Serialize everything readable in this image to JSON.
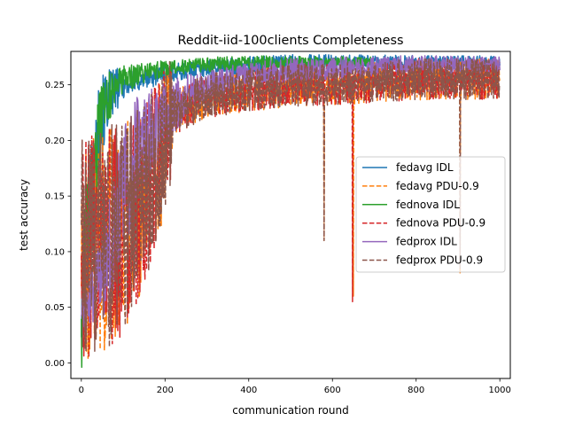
{
  "chart_data": {
    "type": "line",
    "title": "Reddit-iid-100clients Completeness",
    "xlabel": "communication round",
    "ylabel": "test accuracy",
    "xlim": [
      -25,
      1025
    ],
    "ylim": [
      -0.014,
      0.28
    ],
    "grid": false,
    "legend_position": "center-right",
    "x_ticks": [
      0,
      200,
      400,
      600,
      800,
      1000
    ],
    "x_tick_labels": [
      "0",
      "200",
      "400",
      "600",
      "800",
      "1000"
    ],
    "y_ticks": [
      0.0,
      0.05,
      0.1,
      0.15,
      0.2,
      0.25
    ],
    "y_tick_labels": [
      "0.00",
      "0.05",
      "0.10",
      "0.15",
      "0.20",
      "0.25"
    ],
    "rounds": [
      0,
      1000
    ],
    "series": [
      {
        "name": "fedavg IDL",
        "color": "#1f77b4",
        "dash": "solid",
        "trend": [
          [
            0,
            0.05
          ],
          [
            20,
            0.13
          ],
          [
            40,
            0.2
          ],
          [
            60,
            0.235
          ],
          [
            80,
            0.245
          ],
          [
            100,
            0.25
          ],
          [
            150,
            0.255
          ],
          [
            200,
            0.26
          ],
          [
            300,
            0.265
          ],
          [
            400,
            0.268
          ],
          [
            500,
            0.27
          ],
          [
            600,
            0.27
          ],
          [
            800,
            0.27
          ],
          [
            1000,
            0.27
          ]
        ],
        "noise_band": [
          [
            0,
            0.06
          ],
          [
            30,
            0.06
          ],
          [
            60,
            0.03
          ],
          [
            100,
            0.012
          ],
          [
            200,
            0.008
          ],
          [
            1000,
            0.006
          ]
        ]
      },
      {
        "name": "fedavg PDU-0.9",
        "color": "#ff7f0e",
        "dash": "dashed",
        "trend": [
          [
            0,
            0.1
          ],
          [
            50,
            0.11
          ],
          [
            100,
            0.12
          ],
          [
            150,
            0.15
          ],
          [
            200,
            0.2
          ],
          [
            220,
            0.225
          ],
          [
            300,
            0.24
          ],
          [
            400,
            0.245
          ],
          [
            500,
            0.25
          ],
          [
            600,
            0.25
          ],
          [
            800,
            0.255
          ],
          [
            1000,
            0.255
          ]
        ],
        "noise_band": [
          [
            0,
            0.1
          ],
          [
            100,
            0.1
          ],
          [
            215,
            0.06
          ],
          [
            220,
            0.02
          ],
          [
            1000,
            0.018
          ]
        ],
        "dips": [
          [
            580,
            0.11
          ],
          [
            650,
            0.06
          ],
          [
            905,
            0.08
          ]
        ]
      },
      {
        "name": "fednova IDL",
        "color": "#2ca02c",
        "dash": "solid",
        "trend": [
          [
            0,
            0.05
          ],
          [
            20,
            0.15
          ],
          [
            40,
            0.2
          ],
          [
            60,
            0.235
          ],
          [
            80,
            0.248
          ],
          [
            100,
            0.255
          ],
          [
            150,
            0.26
          ],
          [
            200,
            0.265
          ],
          [
            300,
            0.268
          ],
          [
            400,
            0.27
          ],
          [
            500,
            0.27
          ],
          [
            600,
            0.27
          ],
          [
            700,
            0.27
          ]
        ],
        "noise_band": [
          [
            0,
            0.06
          ],
          [
            30,
            0.05
          ],
          [
            60,
            0.025
          ],
          [
            100,
            0.012
          ],
          [
            200,
            0.007
          ],
          [
            700,
            0.005
          ]
        ]
      },
      {
        "name": "fednova PDU-0.9",
        "color": "#d62728",
        "dash": "dashed",
        "trend": [
          [
            0,
            0.1
          ],
          [
            50,
            0.11
          ],
          [
            100,
            0.12
          ],
          [
            150,
            0.15
          ],
          [
            200,
            0.2
          ],
          [
            220,
            0.225
          ],
          [
            300,
            0.24
          ],
          [
            400,
            0.245
          ],
          [
            500,
            0.25
          ],
          [
            600,
            0.25
          ],
          [
            800,
            0.255
          ],
          [
            1000,
            0.255
          ]
        ],
        "noise_band": [
          [
            0,
            0.1
          ],
          [
            100,
            0.1
          ],
          [
            215,
            0.06
          ],
          [
            220,
            0.02
          ],
          [
            1000,
            0.018
          ]
        ],
        "dips": [
          [
            648,
            0.055
          ]
        ]
      },
      {
        "name": "fedprox IDL",
        "color": "#9467bd",
        "dash": "solid",
        "trend": [
          [
            0,
            0.04
          ],
          [
            30,
            0.06
          ],
          [
            60,
            0.09
          ],
          [
            100,
            0.15
          ],
          [
            120,
            0.18
          ],
          [
            150,
            0.2
          ],
          [
            200,
            0.225
          ],
          [
            250,
            0.24
          ],
          [
            300,
            0.25
          ],
          [
            400,
            0.26
          ],
          [
            500,
            0.263
          ],
          [
            600,
            0.265
          ],
          [
            800,
            0.268
          ],
          [
            1000,
            0.268
          ]
        ],
        "noise_band": [
          [
            0,
            0.02
          ],
          [
            100,
            0.06
          ],
          [
            200,
            0.03
          ],
          [
            300,
            0.012
          ],
          [
            1000,
            0.007
          ]
        ]
      },
      {
        "name": "fedprox PDU-0.9",
        "color": "#8c564b",
        "dash": "dashed",
        "trend": [
          [
            0,
            0.1
          ],
          [
            50,
            0.11
          ],
          [
            100,
            0.12
          ],
          [
            150,
            0.15
          ],
          [
            200,
            0.2
          ],
          [
            220,
            0.225
          ],
          [
            300,
            0.24
          ],
          [
            400,
            0.245
          ],
          [
            500,
            0.25
          ],
          [
            600,
            0.25
          ],
          [
            800,
            0.255
          ],
          [
            1000,
            0.255
          ]
        ],
        "noise_band": [
          [
            0,
            0.1
          ],
          [
            100,
            0.1
          ],
          [
            215,
            0.06
          ],
          [
            220,
            0.02
          ],
          [
            1000,
            0.018
          ]
        ],
        "dips": [
          [
            580,
            0.11
          ],
          [
            905,
            0.085
          ]
        ]
      }
    ]
  }
}
